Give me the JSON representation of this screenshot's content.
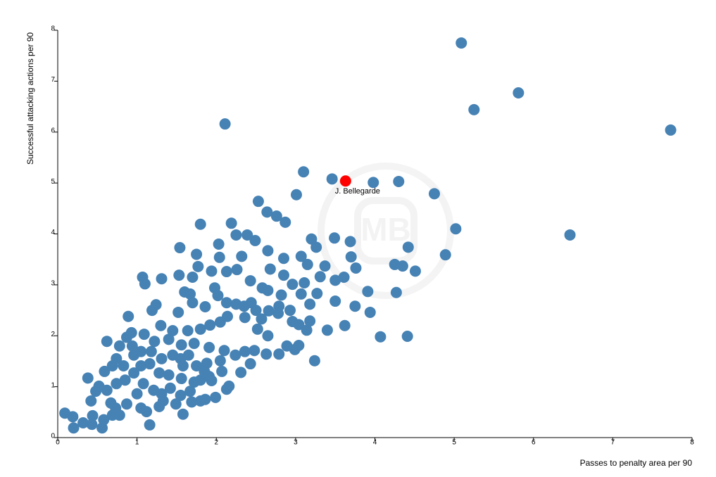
{
  "chart_data": {
    "type": "scatter",
    "x_label": "Passes to penalty area per 90",
    "y_label": "Successful attacking actions per 90",
    "watermark": "MB",
    "color": "#4682b4",
    "xlim": [
      0,
      8
    ],
    "xticks": [
      0,
      1,
      2,
      3,
      4,
      5,
      6,
      7,
      8
    ],
    "ylim": [
      0,
      8
    ],
    "yticks": [
      0,
      1,
      2,
      3,
      4,
      5,
      6,
      7,
      8
    ],
    "x": [
      5.09,
      5.81,
      5.25,
      7.73,
      2.11,
      6.46,
      3.1,
      3.46,
      3.98,
      4.3,
      4.75,
      3.01,
      2.53,
      5.02,
      4.89,
      4.42,
      4.25,
      4.51,
      4.35,
      4.27,
      4.41,
      4.07,
      3.91,
      3.94,
      3.75,
      3.62,
      3.69,
      3.7,
      3.76,
      3.61,
      3.49,
      3.5,
      3.5,
      3.4,
      3.24,
      3.37,
      3.2,
      3.26,
      2.64,
      2.76,
      2.87,
      2.19,
      1.8,
      1.54,
      2.03,
      2.39,
      2.25,
      2.49,
      2.65,
      2.85,
      3.07,
      3.15,
      2.68,
      2.85,
      1.75,
      2.04,
      2.32,
      1.07,
      1.1,
      1.31,
      1.53,
      1.77,
      1.7,
      1.94,
      2.13,
      2.26,
      2.43,
      2.58,
      2.65,
      2.82,
      2.96,
      3.07,
      3.11,
      3.27,
      3.31,
      3.18,
      2.93,
      2.79,
      2.96,
      3.18,
      3.14,
      3.04,
      2.78,
      2.66,
      2.57,
      2.52,
      2.65,
      2.89,
      3.04,
      2.99,
      2.79,
      2.63,
      2.48,
      2.43,
      2.31,
      2.16,
      2.13,
      1.99,
      1.86,
      1.8,
      1.69,
      1.49,
      1.58,
      1.16,
      0.56,
      0.2,
      0.32,
      0.09,
      0.19,
      0.43,
      0.44,
      0.58,
      0.38,
      0.42,
      0.62,
      0.89,
      0.93,
      1.19,
      1.24,
      1.3,
      1.52,
      1.6,
      1.67,
      1.7,
      1.86,
      1.98,
      2.02,
      2.13,
      2.25,
      2.35,
      2.44,
      2.5,
      2.36,
      2.14,
      2.05,
      1.92,
      1.8,
      1.64,
      1.45,
      1.4,
      1.56,
      1.72,
      1.91,
      2.1,
      2.24,
      2.36,
      2.05,
      1.88,
      1.75,
      1.91,
      1.72,
      1.56,
      1.4,
      1.28,
      1.16,
      1.05,
      0.94,
      0.78,
      0.87,
      0.74,
      0.69,
      0.59,
      0.52,
      0.48,
      0.62,
      0.74,
      0.85,
      0.96,
      1.08,
      1.21,
      1.31,
      1.42,
      1.55,
      1.67,
      1.8,
      1.94,
      2.07,
      1.0,
      0.87,
      0.73,
      0.67,
      1.05,
      1.12,
      1.28,
      1.33,
      0.69,
      0.78,
      1.05,
      1.18,
      1.31,
      1.45,
      1.22,
      1.09,
      0.96,
      0.83,
      1.58,
      1.65,
      1.85,
      1.55
    ],
    "values": [
      7.75,
      6.77,
      6.44,
      6.04,
      6.16,
      3.98,
      5.22,
      5.08,
      5.01,
      5.03,
      4.79,
      4.77,
      4.64,
      4.1,
      3.59,
      3.74,
      3.4,
      3.27,
      3.37,
      2.85,
      1.99,
      1.98,
      2.87,
      2.46,
      2.58,
      2.2,
      3.85,
      3.55,
      3.33,
      3.15,
      3.92,
      3.09,
      2.68,
      2.11,
      1.51,
      3.37,
      3.9,
      3.74,
      4.43,
      4.35,
      4.23,
      4.21,
      4.19,
      3.73,
      3.8,
      3.98,
      3.98,
      3.87,
      3.67,
      3.52,
      3.56,
      3.4,
      3.31,
      3.19,
      3.6,
      3.54,
      3.56,
      3.15,
      3.02,
      3.12,
      3.19,
      3.36,
      3.15,
      3.27,
      3.26,
      3.3,
      3.08,
      2.94,
      2.89,
      2.8,
      3.01,
      2.82,
      3.04,
      2.83,
      3.16,
      2.62,
      2.5,
      2.58,
      2.28,
      2.29,
      2.11,
      2.22,
      2.44,
      2.49,
      2.33,
      2.13,
      2.0,
      1.8,
      1.81,
      1.73,
      1.64,
      1.64,
      1.71,
      1.45,
      1.28,
      1.01,
      0.95,
      0.79,
      0.75,
      0.72,
      0.7,
      0.66,
      0.46,
      0.25,
      0.19,
      0.19,
      0.29,
      0.48,
      0.41,
      0.26,
      0.43,
      0.35,
      1.17,
      0.72,
      1.89,
      2.38,
      2.06,
      2.5,
      2.61,
      2.2,
      2.46,
      2.86,
      2.82,
      2.65,
      2.57,
      2.94,
      2.79,
      2.65,
      2.62,
      2.58,
      2.65,
      2.5,
      2.36,
      2.38,
      2.27,
      2.21,
      2.13,
      2.1,
      2.1,
      1.93,
      1.82,
      1.85,
      1.77,
      1.71,
      1.62,
      1.69,
      1.51,
      1.46,
      1.41,
      1.2,
      1.09,
      1.16,
      1.23,
      1.27,
      1.45,
      1.69,
      1.8,
      1.8,
      1.97,
      1.55,
      1.41,
      1.3,
      1.01,
      0.91,
      0.93,
      1.06,
      1.13,
      1.27,
      1.06,
      0.93,
      0.86,
      0.97,
      0.83,
      0.91,
      1.13,
      1.12,
      1.3,
      0.86,
      0.66,
      0.58,
      0.68,
      0.58,
      0.51,
      0.61,
      0.72,
      0.44,
      0.44,
      1.41,
      1.69,
      1.55,
      1.62,
      1.89,
      2.03,
      1.62,
      1.41,
      1.41,
      1.62,
      1.3,
      1.55
    ],
    "highlight": {
      "label": "J. Bellegarde",
      "x": 3.63,
      "y": 5.04,
      "color": "#ff0000"
    }
  }
}
